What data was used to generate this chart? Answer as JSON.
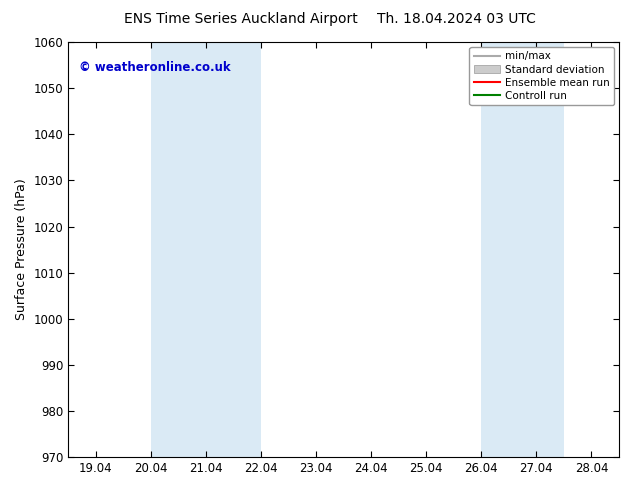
{
  "title_left": "ENS Time Series Auckland Airport",
  "title_right": "Th. 18.04.2024 03 UTC",
  "ylabel": "Surface Pressure (hPa)",
  "ylim": [
    970,
    1060
  ],
  "yticks": [
    970,
    980,
    990,
    1000,
    1010,
    1020,
    1030,
    1040,
    1050,
    1060
  ],
  "xtick_labels": [
    "19.04",
    "20.04",
    "21.04",
    "22.04",
    "23.04",
    "24.04",
    "25.04",
    "26.04",
    "27.04",
    "28.04"
  ],
  "xtick_positions": [
    0,
    1,
    2,
    3,
    4,
    5,
    6,
    7,
    8,
    9
  ],
  "xlim": [
    -0.5,
    9.5
  ],
  "shaded_bands": [
    {
      "xmin": 1.0,
      "xmax": 3.0,
      "color": "#daeaf5"
    },
    {
      "xmin": 7.0,
      "xmax": 8.5,
      "color": "#daeaf5"
    }
  ],
  "copyright_text": "© weatheronline.co.uk",
  "copyright_color": "#0000cc",
  "background_color": "#ffffff",
  "plot_bg_color": "#ffffff",
  "legend_entries": [
    {
      "label": "min/max",
      "color": "#aaaaaa",
      "type": "line"
    },
    {
      "label": "Standard deviation",
      "color": "#cccccc",
      "type": "fill"
    },
    {
      "label": "Ensemble mean run",
      "color": "#ff0000",
      "type": "line"
    },
    {
      "label": "Controll run",
      "color": "#008000",
      "type": "line"
    }
  ],
  "title_fontsize": 10,
  "axis_fontsize": 9,
  "tick_fontsize": 8.5,
  "legend_fontsize": 7.5
}
